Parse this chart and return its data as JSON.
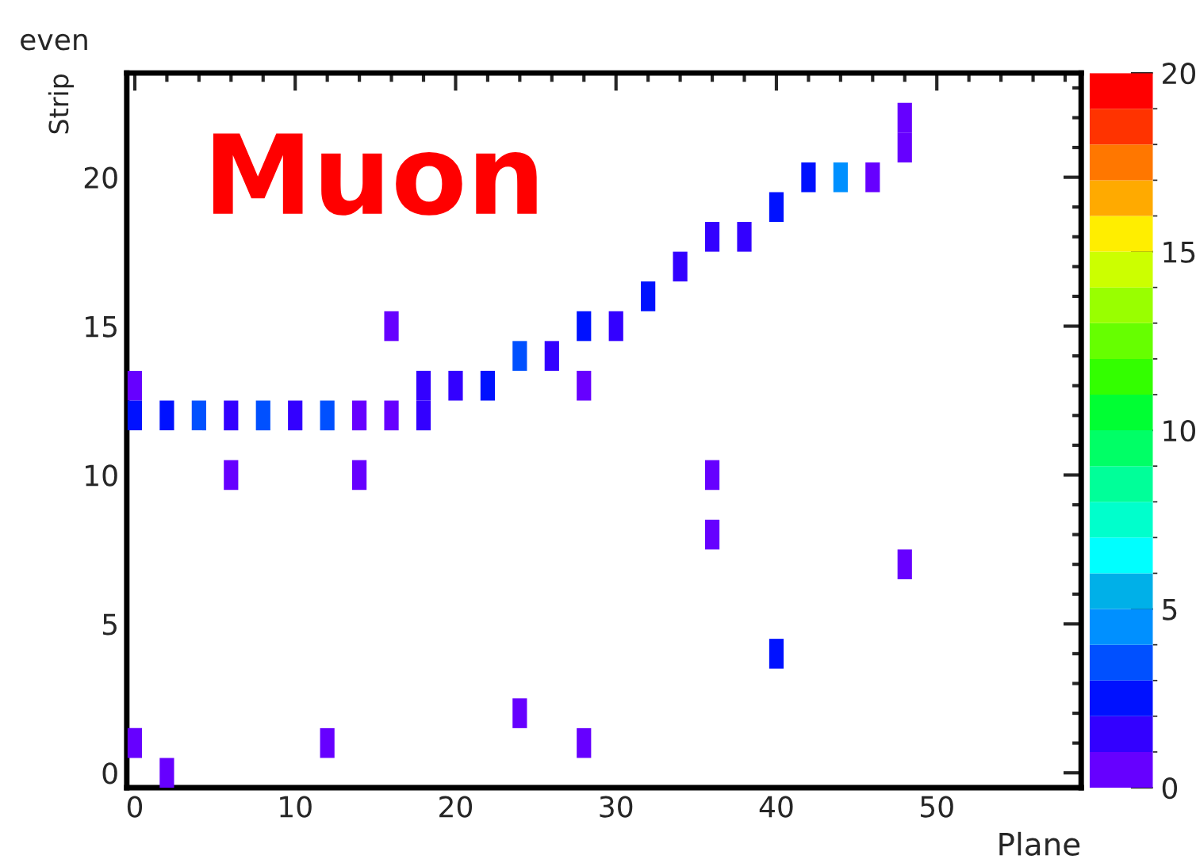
{
  "chart_data": {
    "type": "scatter",
    "title": "even",
    "xlabel": "Plane",
    "ylabel": "Strip",
    "annotations": [
      "Muon"
    ],
    "x": [
      0,
      0,
      2,
      4,
      6,
      8,
      10,
      12,
      14,
      16,
      18,
      18,
      20,
      22,
      24,
      26,
      28,
      28,
      30,
      32,
      34,
      36,
      38,
      40,
      42,
      44,
      46,
      48,
      48,
      16,
      6,
      14,
      36,
      36,
      48,
      40,
      24,
      28,
      12,
      0,
      2
    ],
    "values": [
      13,
      12,
      12,
      12,
      12,
      12,
      12,
      12,
      12,
      12,
      12,
      13,
      13,
      13,
      14,
      14,
      15,
      13,
      15,
      16,
      17,
      18,
      18,
      19,
      20,
      20,
      20,
      21,
      22,
      15,
      10,
      10,
      10,
      8,
      7,
      4,
      2,
      1,
      1,
      1,
      0
    ],
    "cvalues": [
      0.5,
      2.5,
      2.5,
      3.5,
      1.5,
      3.5,
      1.5,
      3.5,
      0.5,
      0.5,
      1.5,
      1.5,
      1.5,
      2.5,
      3.5,
      1.5,
      2.5,
      0.5,
      1.5,
      2.5,
      1.5,
      1.5,
      1.5,
      2.5,
      2.5,
      4.5,
      0.5,
      0.5,
      0.5,
      0.5,
      0.5,
      0.5,
      0.5,
      0.5,
      0.5,
      2.5,
      0.5,
      0.5,
      0.5,
      0.5,
      0.5
    ],
    "xlim": [
      -0.5,
      59
    ],
    "ylim": [
      -0.5,
      23.5
    ],
    "xticks": [
      0,
      10,
      20,
      30,
      40,
      50
    ],
    "yticks": [
      0,
      5,
      10,
      15,
      20
    ],
    "clim": [
      0,
      20
    ],
    "cticks": [
      0,
      5,
      10,
      15,
      20
    ],
    "grid": false,
    "legend": false
  }
}
